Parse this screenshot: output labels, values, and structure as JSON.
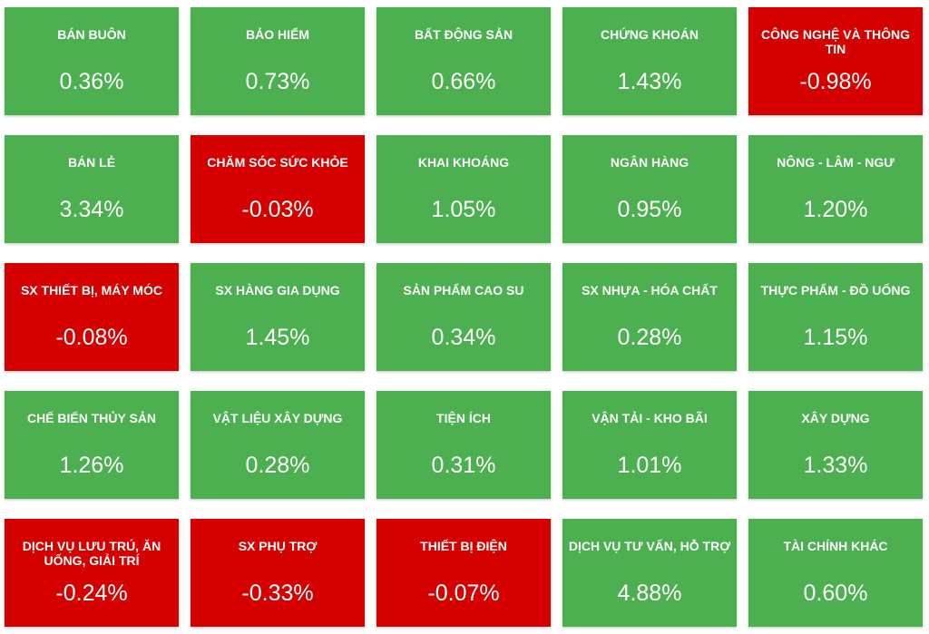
{
  "colors": {
    "up": "#4caf50",
    "down": "#d50000",
    "text": "#ffffff"
  },
  "sectors": [
    {
      "name": "BÁN BUÔN",
      "change": "0.36%",
      "trend": "up"
    },
    {
      "name": "BẢO HIỂM",
      "change": "0.73%",
      "trend": "up"
    },
    {
      "name": "BẤT ĐỘNG SẢN",
      "change": "0.66%",
      "trend": "up"
    },
    {
      "name": "CHỨNG KHOÁN",
      "change": "1.43%",
      "trend": "up"
    },
    {
      "name": "CÔNG NGHỆ VÀ THÔNG TIN",
      "change": "-0.98%",
      "trend": "down"
    },
    {
      "name": "BÁN LẺ",
      "change": "3.34%",
      "trend": "up"
    },
    {
      "name": "CHĂM SÓC SỨC KHỎE",
      "change": "-0.03%",
      "trend": "down"
    },
    {
      "name": "KHAI KHOÁNG",
      "change": "1.05%",
      "trend": "up"
    },
    {
      "name": "NGÂN HÀNG",
      "change": "0.95%",
      "trend": "up"
    },
    {
      "name": "NÔNG - LÂM - NGƯ",
      "change": "1.20%",
      "trend": "up"
    },
    {
      "name": "SX THIẾT BỊ, MÁY MÓC",
      "change": "-0.08%",
      "trend": "down"
    },
    {
      "name": "SX HÀNG GIA DỤNG",
      "change": "1.45%",
      "trend": "up"
    },
    {
      "name": "SẢN PHẨM CAO SU",
      "change": "0.34%",
      "trend": "up"
    },
    {
      "name": "SX NHỰA - HÓA CHẤT",
      "change": "0.28%",
      "trend": "up"
    },
    {
      "name": "THỰC PHẨM - ĐỒ UỐNG",
      "change": "1.15%",
      "trend": "up"
    },
    {
      "name": "CHẾ BIẾN THỦY SẢN",
      "change": "1.26%",
      "trend": "up"
    },
    {
      "name": "VẬT LIỆU XÂY DỰNG",
      "change": "0.28%",
      "trend": "up"
    },
    {
      "name": "TIỆN ÍCH",
      "change": "0.31%",
      "trend": "up"
    },
    {
      "name": "VẬN TẢI - KHO BÃI",
      "change": "1.01%",
      "trend": "up"
    },
    {
      "name": "XÂY DỰNG",
      "change": "1.33%",
      "trend": "up"
    },
    {
      "name": "DỊCH VỤ LƯU TRÚ, ĂN UỐNG, GIẢI TRÍ",
      "change": "-0.24%",
      "trend": "down"
    },
    {
      "name": "SX PHỤ TRỢ",
      "change": "-0.33%",
      "trend": "down"
    },
    {
      "name": "THIẾT BỊ ĐIỆN",
      "change": "-0.07%",
      "trend": "down"
    },
    {
      "name": "DỊCH VỤ TƯ VẤN, HỖ TRỢ",
      "change": "4.88%",
      "trend": "up"
    },
    {
      "name": "TÀI CHÍNH KHÁC",
      "change": "0.60%",
      "trend": "up"
    }
  ]
}
